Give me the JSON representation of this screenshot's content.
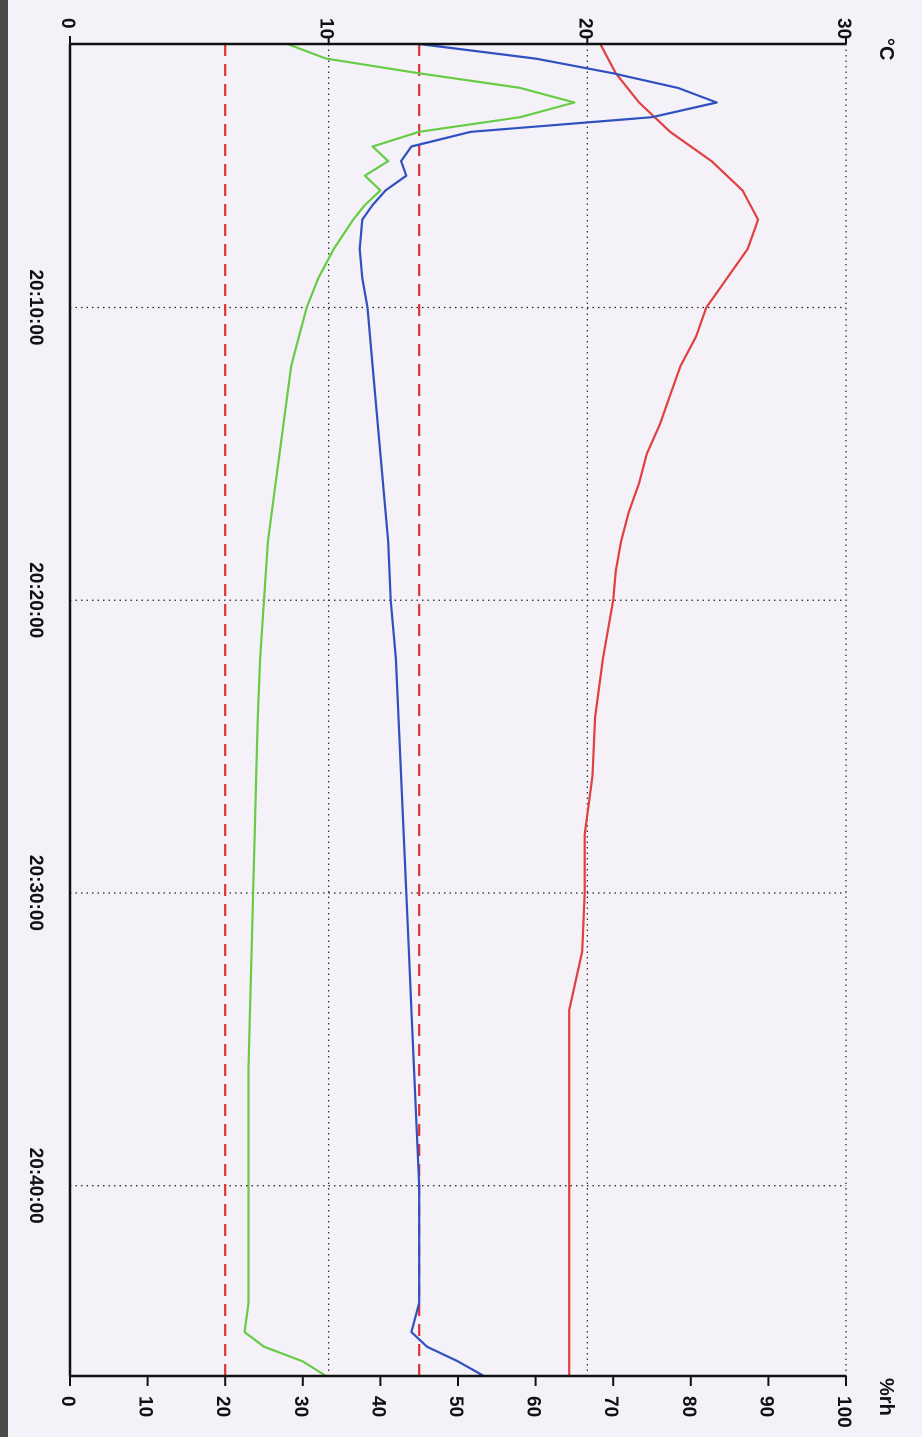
{
  "chart_data": {
    "type": "line",
    "orientation": "rotated-90-clockwise",
    "axes": {
      "time": {
        "tick_labels": [
          "20:10:00",
          "20:20:00",
          "20:30:00",
          "20:40:00"
        ],
        "range": [
          "20:01:00",
          "20:46:30"
        ],
        "grid": true
      },
      "temperature": {
        "unit_label": "°C",
        "tick_labels": [
          "0",
          "10",
          "20",
          "30"
        ],
        "range": [
          0,
          30
        ],
        "grid": true
      },
      "humidity": {
        "unit_label": "%rh",
        "tick_labels": [
          "0",
          "10",
          "20",
          "30",
          "40",
          "50",
          "60",
          "70",
          "80",
          "90",
          "100"
        ],
        "range": [
          0,
          100
        ]
      }
    },
    "reference_lines": [
      {
        "axis": "humidity",
        "value": 20,
        "style": "dashed",
        "color": "#e03030"
      },
      {
        "axis": "humidity",
        "value": 45,
        "style": "dashed",
        "color": "#e03030"
      }
    ],
    "series": [
      {
        "color": "#e04040",
        "axis": "temperature",
        "points": [
          [
            "20:01:00",
            20.5
          ],
          [
            "20:02:00",
            21.1
          ],
          [
            "20:03:00",
            22.0
          ],
          [
            "20:04:00",
            23.2
          ],
          [
            "20:05:00",
            24.8
          ],
          [
            "20:06:00",
            26.0
          ],
          [
            "20:07:00",
            26.6
          ],
          [
            "20:08:00",
            26.2
          ],
          [
            "20:09:00",
            25.4
          ],
          [
            "20:10:00",
            24.6
          ],
          [
            "20:11:00",
            24.2
          ],
          [
            "20:12:00",
            23.6
          ],
          [
            "20:13:00",
            23.2
          ],
          [
            "20:14:00",
            22.8
          ],
          [
            "20:15:00",
            22.3
          ],
          [
            "20:16:00",
            22.0
          ],
          [
            "20:17:00",
            21.6
          ],
          [
            "20:18:00",
            21.3
          ],
          [
            "20:19:00",
            21.1
          ],
          [
            "20:20:00",
            21.0
          ],
          [
            "20:22:00",
            20.6
          ],
          [
            "20:24:00",
            20.3
          ],
          [
            "20:26:00",
            20.2
          ],
          [
            "20:28:00",
            19.9
          ],
          [
            "20:30:00",
            19.9
          ],
          [
            "20:32:00",
            19.8
          ],
          [
            "20:34:00",
            19.3
          ],
          [
            "20:37:00",
            19.3
          ],
          [
            "20:40:00",
            19.3
          ],
          [
            "20:43:00",
            19.3
          ],
          [
            "20:46:30",
            19.3
          ]
        ]
      },
      {
        "color": "#3050c0",
        "axis": "temperature",
        "points": [
          [
            "20:01:00",
            13.5
          ],
          [
            "20:01:30",
            18.0
          ],
          [
            "20:02:00",
            21.0
          ],
          [
            "20:02:30",
            23.5
          ],
          [
            "20:03:00",
            25.0
          ],
          [
            "20:03:30",
            22.5
          ],
          [
            "20:04:00",
            15.5
          ],
          [
            "20:04:30",
            13.2
          ],
          [
            "20:05:00",
            12.8
          ],
          [
            "20:05:30",
            13.0
          ],
          [
            "20:06:00",
            12.2
          ],
          [
            "20:06:30",
            11.7
          ],
          [
            "20:07:00",
            11.3
          ],
          [
            "20:08:00",
            11.2
          ],
          [
            "20:09:00",
            11.3
          ],
          [
            "20:10:00",
            11.5
          ],
          [
            "20:12:00",
            11.7
          ],
          [
            "20:14:00",
            11.9
          ],
          [
            "20:16:00",
            12.1
          ],
          [
            "20:18:00",
            12.3
          ],
          [
            "20:20:00",
            12.4
          ],
          [
            "20:22:00",
            12.6
          ],
          [
            "20:24:00",
            12.7
          ],
          [
            "20:26:00",
            12.8
          ],
          [
            "20:28:00",
            12.9
          ],
          [
            "20:30:00",
            13.0
          ],
          [
            "20:32:00",
            13.1
          ],
          [
            "20:34:00",
            13.2
          ],
          [
            "20:36:00",
            13.3
          ],
          [
            "20:38:00",
            13.4
          ],
          [
            "20:40:00",
            13.5
          ],
          [
            "20:42:00",
            13.5
          ],
          [
            "20:44:00",
            13.5
          ],
          [
            "20:45:00",
            13.2
          ],
          [
            "20:45:30",
            13.8
          ],
          [
            "20:46:00",
            15.0
          ],
          [
            "20:46:30",
            16.0
          ]
        ]
      },
      {
        "color": "#66cc44",
        "axis": "humidity",
        "points": [
          [
            "20:01:00",
            28.0
          ],
          [
            "20:01:30",
            33.0
          ],
          [
            "20:02:00",
            45.0
          ],
          [
            "20:02:30",
            58.0
          ],
          [
            "20:03:00",
            65.0
          ],
          [
            "20:03:30",
            58.0
          ],
          [
            "20:04:00",
            45.0
          ],
          [
            "20:04:30",
            39.0
          ],
          [
            "20:05:00",
            41.0
          ],
          [
            "20:05:30",
            38.0
          ],
          [
            "20:06:00",
            40.0
          ],
          [
            "20:06:30",
            38.0
          ],
          [
            "20:07:00",
            36.5
          ],
          [
            "20:08:00",
            34.0
          ],
          [
            "20:09:00",
            32.0
          ],
          [
            "20:10:00",
            30.5
          ],
          [
            "20:11:00",
            29.5
          ],
          [
            "20:12:00",
            28.5
          ],
          [
            "20:14:00",
            27.5
          ],
          [
            "20:16:00",
            26.5
          ],
          [
            "20:18:00",
            25.5
          ],
          [
            "20:20:00",
            25.0
          ],
          [
            "20:22:00",
            24.5
          ],
          [
            "20:24:00",
            24.2
          ],
          [
            "20:26:00",
            24.0
          ],
          [
            "20:28:00",
            23.8
          ],
          [
            "20:30:00",
            23.6
          ],
          [
            "20:32:00",
            23.4
          ],
          [
            "20:34:00",
            23.2
          ],
          [
            "20:36:00",
            23.0
          ],
          [
            "20:38:00",
            23.0
          ],
          [
            "20:40:00",
            23.0
          ],
          [
            "20:42:00",
            23.0
          ],
          [
            "20:44:00",
            23.0
          ],
          [
            "20:45:00",
            22.5
          ],
          [
            "20:45:30",
            25.0
          ],
          [
            "20:46:00",
            30.0
          ],
          [
            "20:46:30",
            33.0
          ]
        ]
      }
    ]
  }
}
